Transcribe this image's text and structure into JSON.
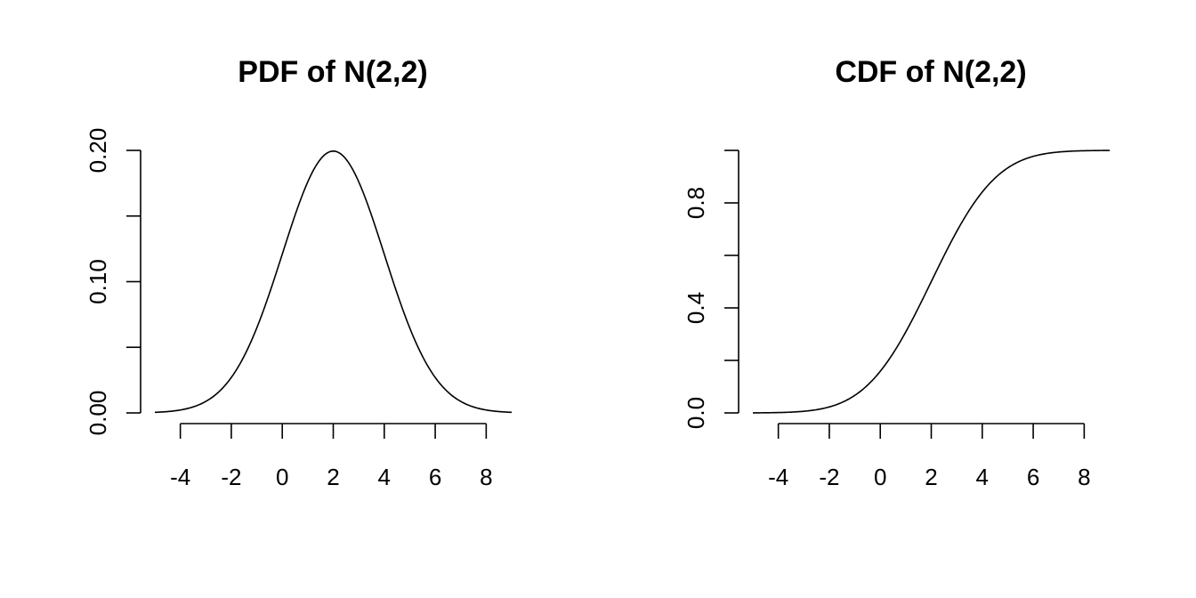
{
  "chart_data": [
    {
      "type": "line",
      "title": "PDF of N(2,2)",
      "xlabel": "",
      "ylabel": "",
      "xlim": [
        -5,
        9
      ],
      "ylim": [
        0,
        0.2
      ],
      "x_ticks": [
        -4,
        -2,
        0,
        2,
        4,
        6,
        8
      ],
      "x_tick_labels": [
        "-4",
        "-2",
        "0",
        "2",
        "4",
        "6",
        "8"
      ],
      "y_ticks": [
        0,
        0.05,
        0.1,
        0.15,
        0.2
      ],
      "y_tick_labels": [
        "0.00",
        "",
        "0.10",
        "",
        "0.20"
      ],
      "grid": false,
      "series": [
        {
          "x": [
            -5,
            -4,
            -3,
            -2,
            -1,
            0,
            1,
            2,
            3,
            4,
            5,
            6,
            7,
            8,
            9
          ],
          "y": [
            0.0009,
            0.0022,
            0.0088,
            0.027,
            0.065,
            0.121,
            0.176,
            0.1995,
            0.176,
            0.121,
            0.065,
            0.027,
            0.0088,
            0.0022,
            0.0004
          ]
        }
      ],
      "line_color": "#000000"
    },
    {
      "type": "line",
      "title": "CDF of N(2,2)",
      "xlabel": "",
      "ylabel": "",
      "xlim": [
        -5,
        9
      ],
      "ylim": [
        0,
        1
      ],
      "x_ticks": [
        -4,
        -2,
        0,
        2,
        4,
        6,
        8
      ],
      "x_tick_labels": [
        "-4",
        "-2",
        "0",
        "2",
        "4",
        "6",
        "8"
      ],
      "y_ticks": [
        0,
        0.2,
        0.4,
        0.6,
        0.8,
        1.0
      ],
      "y_tick_labels": [
        "0.0",
        "",
        "0.4",
        "",
        "0.8",
        ""
      ],
      "grid": false,
      "series": [
        {
          "x": [
            -5,
            -4,
            -3,
            -2,
            -1,
            0,
            1,
            2,
            3,
            4,
            5,
            6,
            7,
            8,
            9
          ],
          "y": [
            0.0002,
            0.0013,
            0.0062,
            0.0228,
            0.0668,
            0.1587,
            0.3085,
            0.5,
            0.6915,
            0.8413,
            0.9332,
            0.9772,
            0.9938,
            0.9987,
            0.9998
          ]
        }
      ],
      "line_color": "#000000"
    }
  ]
}
